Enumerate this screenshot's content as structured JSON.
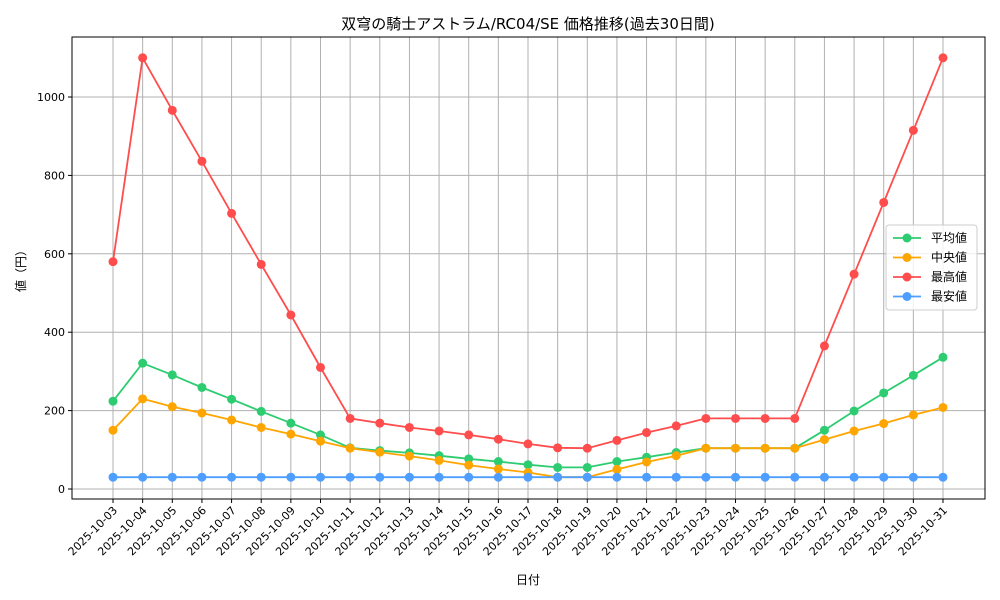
{
  "chart_data": {
    "type": "line",
    "title": "双穹の騎士アストラム/RC04/SE 価格推移(過去30日間)",
    "xlabel": "日付",
    "ylabel": "値（円）",
    "ylim": [
      -25,
      1153
    ],
    "yticks": [
      0,
      200,
      400,
      600,
      800,
      1000
    ],
    "grid": true,
    "legend_position": "center right",
    "categories": [
      "2025-10-03",
      "2025-10-04",
      "2025-10-05",
      "2025-10-06",
      "2025-10-07",
      "2025-10-08",
      "2025-10-09",
      "2025-10-10",
      "2025-10-11",
      "2025-10-12",
      "2025-10-13",
      "2025-10-14",
      "2025-10-15",
      "2025-10-16",
      "2025-10-17",
      "2025-10-18",
      "2025-10-19",
      "2025-10-20",
      "2025-10-21",
      "2025-10-22",
      "2025-10-23",
      "2025-10-24",
      "2025-10-25",
      "2025-10-26",
      "2025-10-27",
      "2025-10-28",
      "2025-10-29",
      "2025-10-30",
      "2025-10-31"
    ],
    "series": [
      {
        "name": "平均値",
        "color": "#2ecc71",
        "values": [
          224,
          321,
          291,
          259,
          229,
          198,
          168,
          138,
          105,
          98,
          92,
          85,
          77,
          70,
          62,
          55,
          55,
          70,
          81,
          93,
          104,
          104,
          104,
          104,
          150,
          199,
          245,
          290,
          336
        ]
      },
      {
        "name": "中央値",
        "color": "#ffa500",
        "values": [
          150,
          230,
          210,
          194,
          176,
          157,
          140,
          122,
          104,
          94,
          84,
          73,
          61,
          51,
          42,
          30,
          30,
          50,
          69,
          85,
          104,
          104,
          104,
          104,
          126,
          148,
          167,
          189,
          208
        ]
      },
      {
        "name": "最高値",
        "color": "#ff4d4d",
        "values": [
          580,
          1100,
          966,
          836,
          703,
          573,
          444,
          310,
          180,
          168,
          157,
          148,
          138,
          127,
          115,
          105,
          104,
          124,
          144,
          161,
          180,
          180,
          180,
          180,
          365,
          548,
          731,
          915,
          1100
        ]
      },
      {
        "name": "最安値",
        "color": "#4d9eff",
        "values": [
          30,
          30,
          30,
          30,
          30,
          30,
          30,
          30,
          30,
          30,
          30,
          30,
          30,
          30,
          30,
          30,
          30,
          30,
          30,
          30,
          30,
          30,
          30,
          30,
          30,
          30,
          30,
          30,
          30
        ]
      }
    ]
  }
}
